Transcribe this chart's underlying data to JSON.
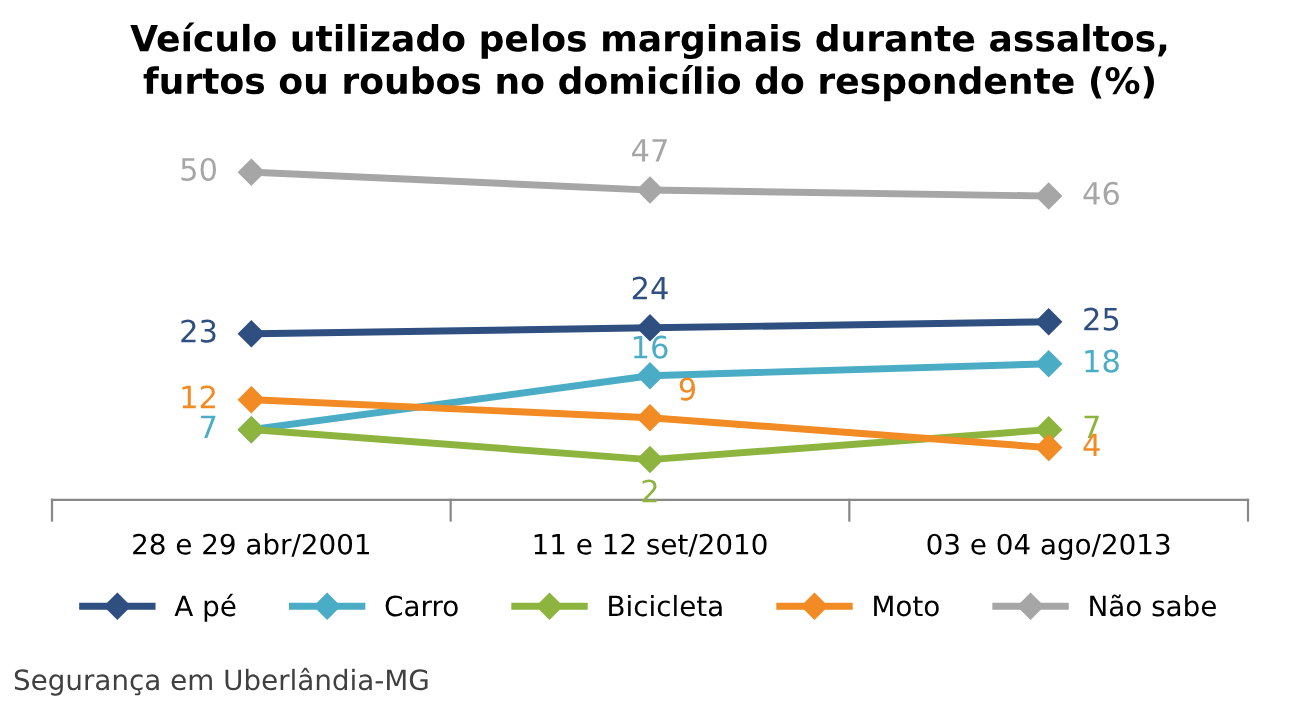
{
  "chart_data": {
    "type": "line",
    "title": "Veículo utilizado pelos marginais durante assaltos,\nfurtos ou roubos no domicílio do respondente (%)",
    "categories": [
      "28 e 29 abr/2001",
      "11 e 12 set/2010",
      "03 e 04 ago/2013"
    ],
    "series": [
      {
        "name": "A pé",
        "color": "#2e4f7f",
        "values": [
          23,
          24,
          25
        ]
      },
      {
        "name": "Carro",
        "color": "#4bacc6",
        "values": [
          7,
          16,
          18
        ]
      },
      {
        "name": "Bicicleta",
        "color": "#8db43e",
        "values": [
          7,
          2,
          7
        ],
        "value_labels": [
          null,
          "2",
          "7"
        ]
      },
      {
        "name": "Moto",
        "color": "#f28b24",
        "values": [
          12,
          9,
          4
        ]
      },
      {
        "name": "Não sabe",
        "color": "#a6a6a6",
        "values": [
          50,
          47,
          46
        ]
      }
    ],
    "data_labels": true,
    "marker": "diamond",
    "line_style": "solid",
    "grid": false,
    "legend": "bottom",
    "annotations": [
      "Segurança em Uberlândia-MG"
    ]
  }
}
